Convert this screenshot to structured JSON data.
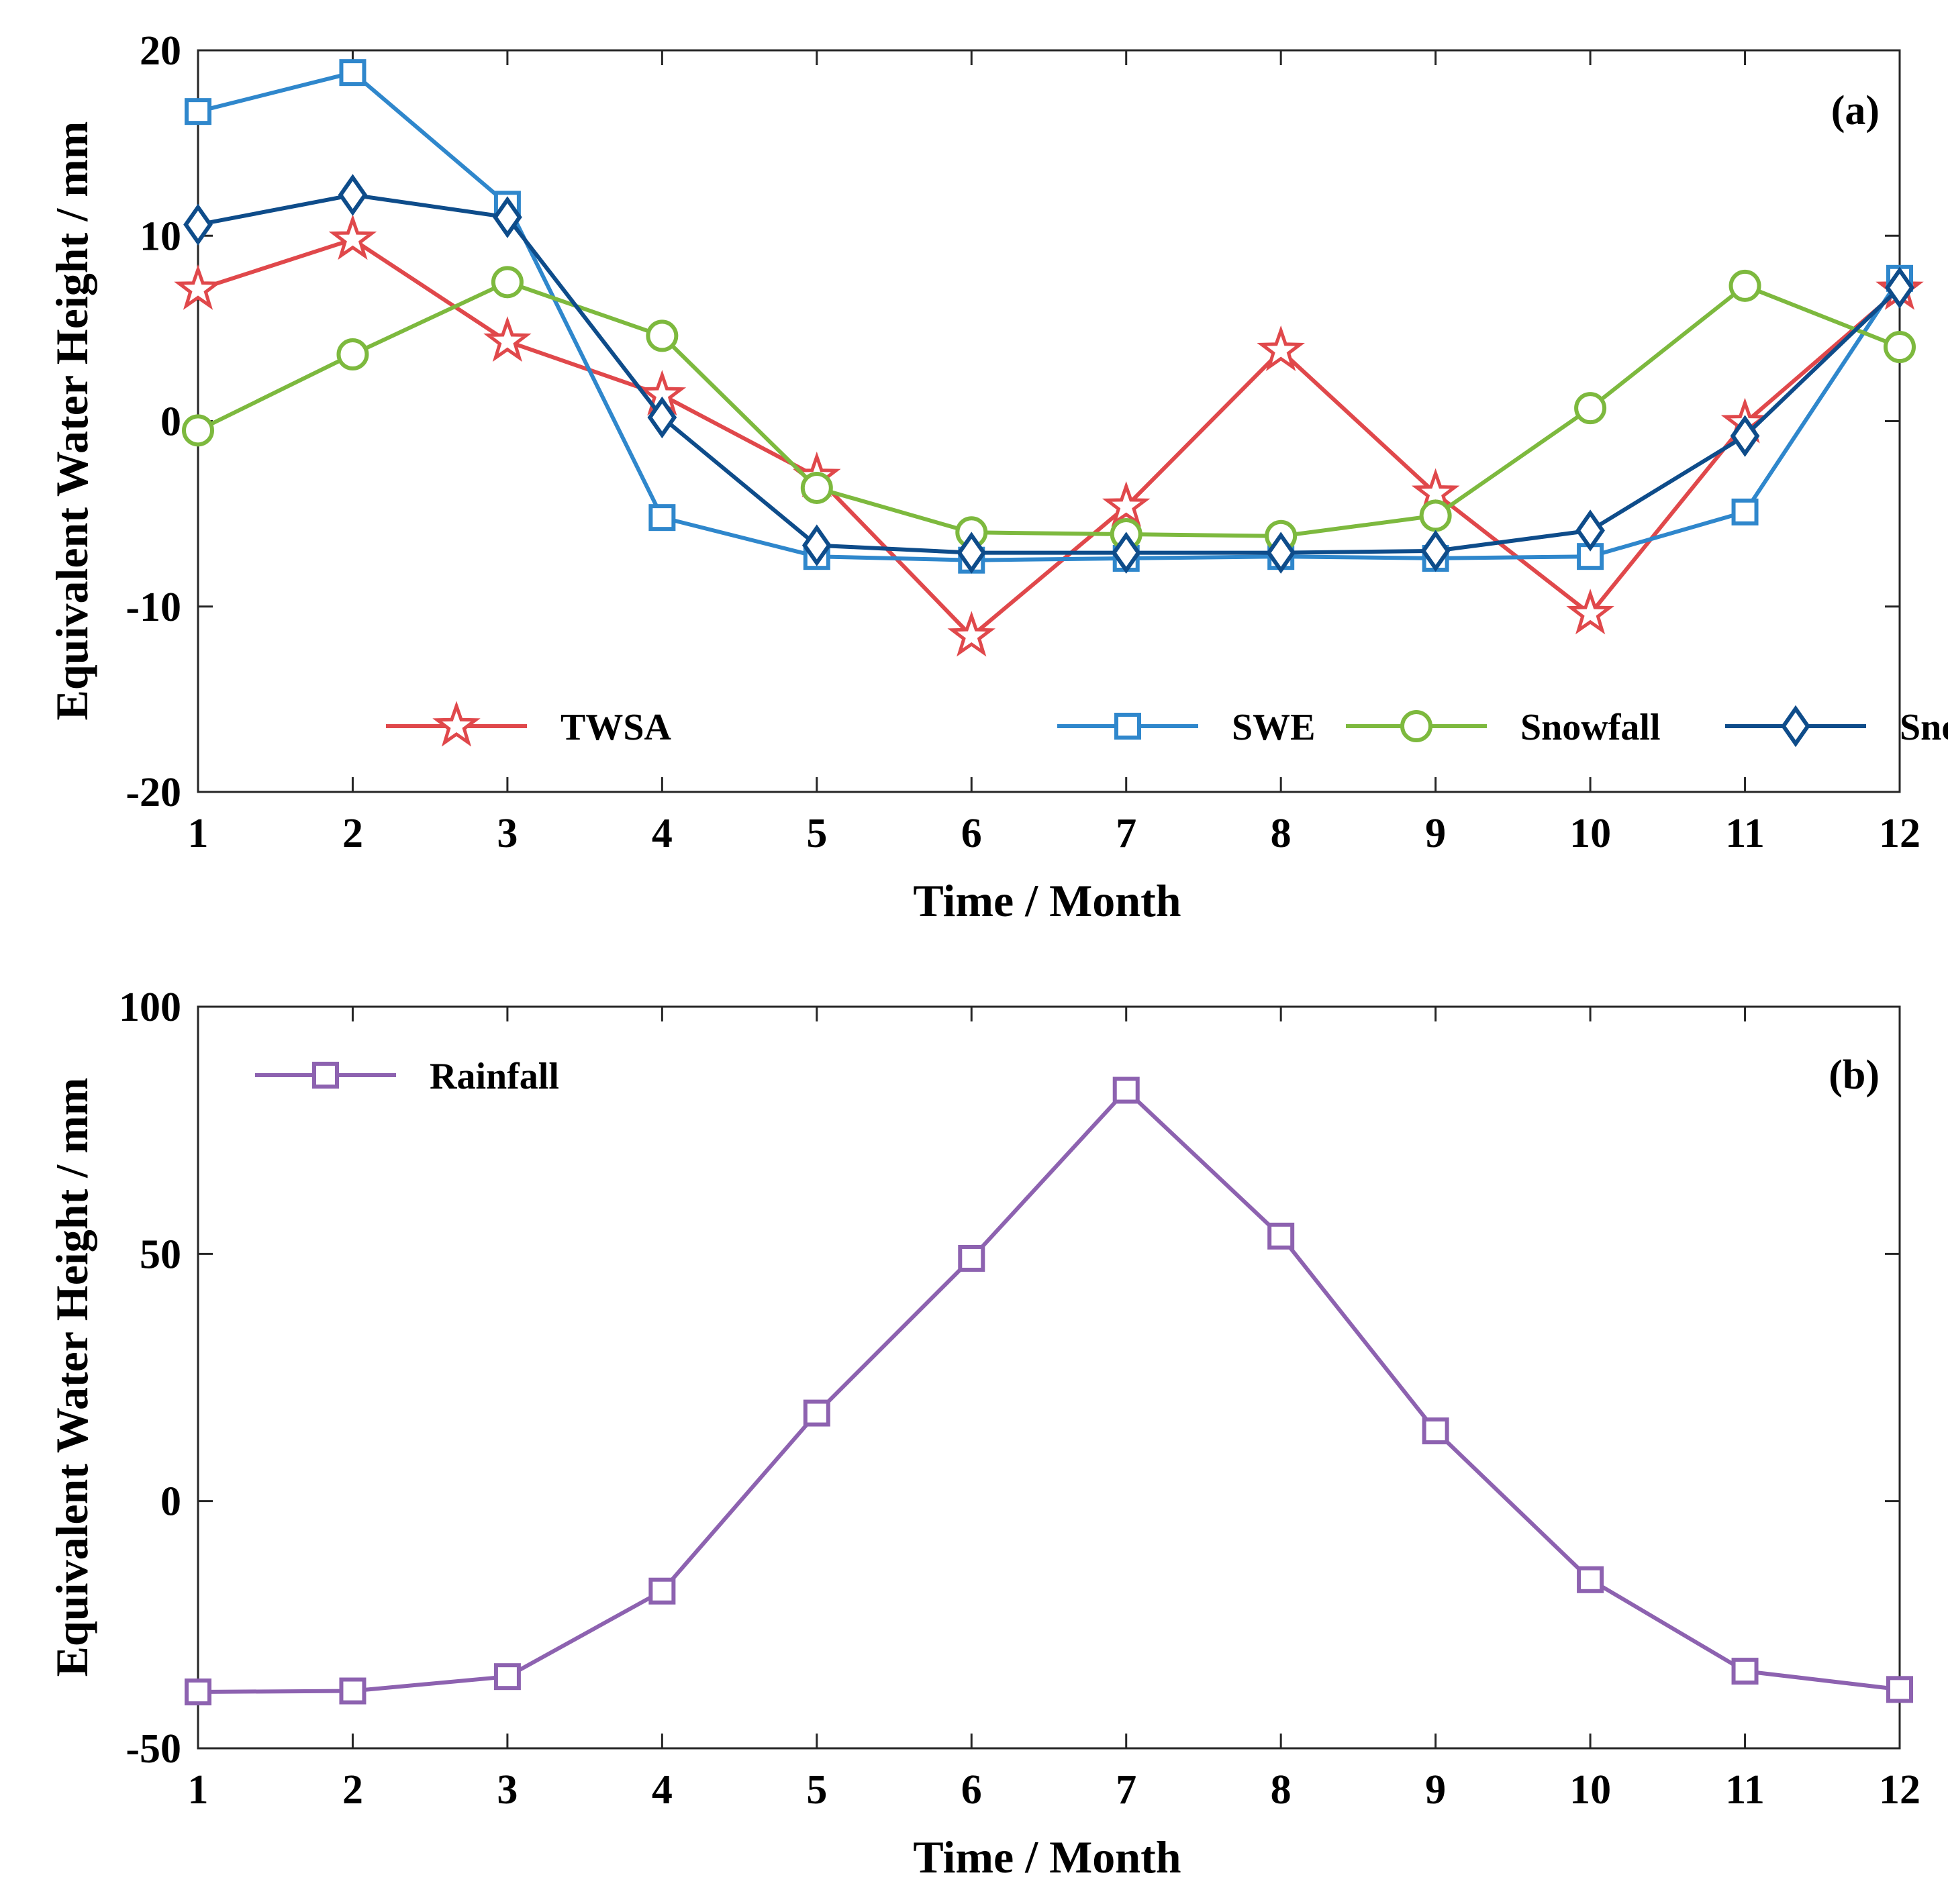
{
  "chart_data": [
    {
      "type": "line",
      "panel_label": "(a)",
      "xlabel": "Time / Month",
      "ylabel": "Equivalent Water Height / mm",
      "xlim": [
        1,
        12
      ],
      "ylim": [
        -20,
        20
      ],
      "x": [
        1,
        2,
        3,
        4,
        5,
        6,
        7,
        8,
        9,
        10,
        11,
        12
      ],
      "xticks": [
        "1",
        "2",
        "3",
        "4",
        "5",
        "6",
        "7",
        "8",
        "9",
        "10",
        "11",
        "12"
      ],
      "yticks": [
        "-20",
        "-10",
        "0",
        "10",
        "20"
      ],
      "ytick_values": [
        -20,
        -10,
        0,
        10,
        20
      ],
      "legend_position": "bottom-center",
      "series": [
        {
          "name": "TWSA",
          "color": "#e0484b",
          "marker": "star",
          "values": [
            7.1,
            9.8,
            4.3,
            1.4,
            -3.0,
            -11.6,
            -4.6,
            3.8,
            -3.9,
            -10.4,
            -0.1,
            7.1
          ]
        },
        {
          "name": "SWE",
          "color": "#2f87cc",
          "marker": "square",
          "values": [
            16.7,
            18.8,
            11.7,
            -5.2,
            -7.3,
            -7.5,
            -7.4,
            -7.3,
            -7.4,
            -7.3,
            -4.9,
            7.7
          ]
        },
        {
          "name": "Snowfall",
          "color": "#7db93e",
          "marker": "circle",
          "values": [
            -0.5,
            3.6,
            7.5,
            4.6,
            -3.6,
            -6.0,
            -6.1,
            -6.2,
            -5.1,
            0.7,
            7.3,
            4.0
          ]
        },
        {
          "name": "Snow depth",
          "color": "#0e4c8a",
          "marker": "diamond",
          "values": [
            10.6,
            12.2,
            11.0,
            0.2,
            -6.7,
            -7.1,
            -7.1,
            -7.1,
            -7.0,
            -5.9,
            -0.8,
            7.2
          ]
        }
      ]
    },
    {
      "type": "line",
      "panel_label": "(b)",
      "xlabel": "Time / Month",
      "ylabel": "Equivalent Water Height / mm",
      "xlim": [
        1,
        12
      ],
      "ylim": [
        -50,
        100
      ],
      "x": [
        1,
        2,
        3,
        4,
        5,
        6,
        7,
        8,
        9,
        10,
        11,
        12
      ],
      "xticks": [
        "1",
        "2",
        "3",
        "4",
        "5",
        "6",
        "7",
        "8",
        "9",
        "10",
        "11",
        "12"
      ],
      "yticks": [
        "-50",
        "0",
        "50",
        "100"
      ],
      "ytick_values": [
        -50,
        0,
        50,
        100
      ],
      "legend_position": "top-left",
      "series": [
        {
          "name": "Rainfall",
          "color": "#8d62b0",
          "marker": "square",
          "values": [
            -38.6,
            -38.4,
            -35.5,
            -18.2,
            17.8,
            49.1,
            83.1,
            53.6,
            14.2,
            -15.9,
            -34.4,
            -38.1
          ]
        }
      ]
    }
  ]
}
